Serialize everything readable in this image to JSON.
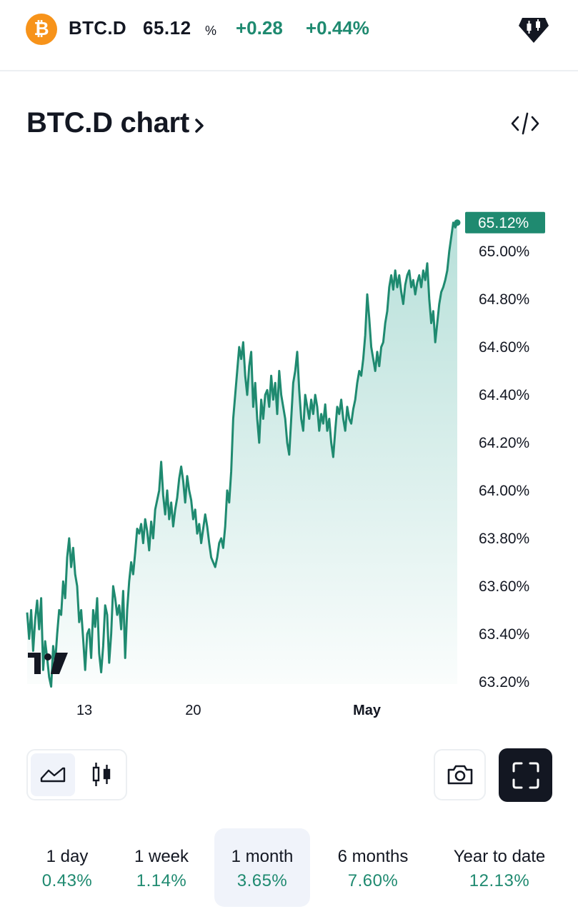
{
  "header": {
    "symbol": "BTC.D",
    "price": "65.12",
    "unit": "%",
    "change": "+0.28",
    "change_percent": "+0.44%"
  },
  "title": {
    "label": "BTC.D chart"
  },
  "chart_data": {
    "type": "area",
    "x_ticks": [
      {
        "label": "13",
        "t": 0.133,
        "bold": false
      },
      {
        "label": "20",
        "t": 0.386,
        "bold": false
      },
      {
        "label": "May",
        "t": 0.79,
        "bold": true
      }
    ],
    "y_ticks": [
      "65.00%",
      "64.80%",
      "64.60%",
      "64.40%",
      "64.20%",
      "64.00%",
      "63.80%",
      "63.60%",
      "63.40%",
      "63.20%"
    ],
    "ylim": [
      63.14,
      65.2
    ],
    "last_value_label": "65.12%",
    "grid": false,
    "colors": {
      "line": "#1f8a70",
      "fill": "#1f9e8a",
      "label_bg": "#1f8a70"
    },
    "values": [
      63.49,
      63.38,
      63.5,
      63.33,
      63.46,
      63.54,
      63.42,
      63.55,
      63.25,
      63.37,
      63.3,
      63.22,
      63.18,
      63.35,
      63.28,
      63.4,
      63.5,
      63.48,
      63.62,
      63.55,
      63.72,
      63.8,
      63.68,
      63.76,
      63.65,
      63.6,
      63.45,
      63.5,
      63.38,
      63.25,
      63.4,
      63.42,
      63.3,
      63.5,
      63.43,
      63.55,
      63.32,
      63.24,
      63.35,
      63.52,
      63.48,
      63.28,
      63.4,
      63.6,
      63.55,
      63.48,
      63.52,
      63.42,
      63.58,
      63.3,
      63.5,
      63.62,
      63.7,
      63.65,
      63.74,
      63.84,
      63.82,
      63.86,
      63.78,
      63.88,
      63.83,
      63.75,
      63.87,
      63.8,
      63.92,
      63.96,
      64.0,
      64.12,
      63.98,
      63.9,
      64.0,
      63.88,
      63.95,
      63.85,
      63.92,
      63.97,
      64.05,
      64.1,
      64.04,
      63.95,
      64.06,
      64.0,
      63.96,
      63.88,
      63.92,
      63.82,
      63.86,
      63.78,
      63.84,
      63.9,
      63.85,
      63.78,
      63.72,
      63.7,
      63.68,
      63.72,
      63.78,
      63.8,
      63.76,
      63.85,
      64.0,
      63.95,
      64.08,
      64.3,
      64.4,
      64.5,
      64.6,
      64.55,
      64.62,
      64.48,
      64.4,
      64.52,
      64.58,
      64.35,
      64.45,
      64.3,
      64.2,
      64.38,
      64.3,
      64.4,
      64.42,
      64.35,
      64.48,
      64.38,
      64.45,
      64.32,
      64.5,
      64.4,
      64.35,
      64.3,
      64.2,
      64.15,
      64.3,
      64.45,
      64.5,
      64.58,
      64.42,
      64.3,
      64.25,
      64.4,
      64.35,
      64.3,
      64.38,
      64.32,
      64.4,
      64.35,
      64.25,
      64.32,
      64.28,
      64.36,
      64.25,
      64.3,
      64.2,
      64.14,
      64.25,
      64.35,
      64.32,
      64.38,
      64.3,
      64.25,
      64.35,
      64.3,
      64.28,
      64.34,
      64.38,
      64.45,
      64.5,
      64.48,
      64.55,
      64.65,
      64.82,
      64.72,
      64.6,
      64.55,
      64.5,
      64.58,
      64.52,
      64.6,
      64.62,
      64.7,
      64.75,
      64.85,
      64.9,
      64.84,
      64.92,
      64.85,
      64.9,
      64.83,
      64.78,
      64.86,
      64.9,
      64.92,
      64.85,
      64.88,
      64.82,
      64.87,
      64.9,
      64.85,
      64.92,
      64.88,
      64.95,
      64.8,
      64.7,
      64.75,
      64.62,
      64.7,
      64.78,
      64.83,
      64.85,
      64.88,
      64.92,
      65.0,
      65.06,
      65.12,
      65.1,
      65.12
    ]
  },
  "controls": {
    "chart_types": [
      {
        "name": "area",
        "active": true
      },
      {
        "name": "candles",
        "active": false
      }
    ]
  },
  "periods": [
    {
      "label": "1 day",
      "value": "0.43%",
      "active": false
    },
    {
      "label": "1 week",
      "value": "1.14%",
      "active": false
    },
    {
      "label": "1 month",
      "value": "3.65%",
      "active": true
    },
    {
      "label": "6 months",
      "value": "7.60%",
      "active": false
    },
    {
      "label": "Year to date",
      "value": "12.13%",
      "active": false
    }
  ]
}
